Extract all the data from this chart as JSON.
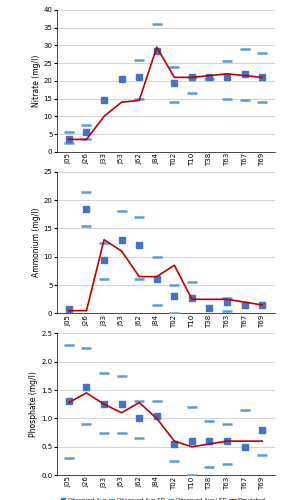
{
  "x_labels": [
    "J05",
    "J26",
    "J33",
    "J53",
    "J62",
    "J84",
    "T02",
    "T10",
    "T38",
    "T63",
    "T67",
    "T69"
  ],
  "x_positions": [
    0,
    1,
    2,
    3,
    4,
    5,
    6,
    7,
    8,
    9,
    10,
    11
  ],
  "nitrate": {
    "ylabel": "Nitrate (mg/l)",
    "ylim": [
      0.0,
      40.0
    ],
    "yticks": [
      0.0,
      5.0,
      10.0,
      15.0,
      20.0,
      25.0,
      30.0,
      35.0,
      40.0
    ],
    "obs_avg": [
      3.5,
      5.5,
      14.5,
      20.5,
      21.0,
      28.5,
      19.5,
      21.0,
      21.0,
      21.0,
      22.0,
      21.0
    ],
    "obs_minus_sd": [
      2.5,
      3.5,
      null,
      null,
      15.0,
      null,
      14.0,
      16.5,
      20.5,
      15.0,
      14.5,
      14.0
    ],
    "obs_plus_sd": [
      5.5,
      7.5,
      null,
      null,
      26.0,
      36.0,
      24.0,
      21.0,
      null,
      25.5,
      29.0,
      28.0
    ],
    "simulated": [
      3.5,
      3.5,
      10.0,
      14.0,
      14.5,
      29.5,
      21.0,
      21.0,
      21.5,
      22.0,
      21.5,
      21.0
    ]
  },
  "ammonium": {
    "ylabel": "Ammonium (mg/l)",
    "ylim": [
      0.0,
      25.0
    ],
    "yticks": [
      0.0,
      5.0,
      10.0,
      15.0,
      20.0,
      25.0
    ],
    "obs_avg": [
      0.8,
      18.5,
      9.5,
      13.0,
      12.0,
      6.0,
      3.0,
      2.8,
      1.0,
      2.0,
      1.5,
      1.5
    ],
    "obs_minus_sd": [
      null,
      15.5,
      6.0,
      null,
      6.0,
      1.5,
      0.0,
      null,
      null,
      0.5,
      null,
      null
    ],
    "obs_plus_sd": [
      null,
      21.5,
      12.5,
      18.0,
      17.0,
      10.0,
      5.0,
      5.5,
      null,
      2.8,
      null,
      null
    ],
    "simulated": [
      0.5,
      0.5,
      13.0,
      11.0,
      6.5,
      6.5,
      8.5,
      2.5,
      2.5,
      2.5,
      2.0,
      1.5
    ]
  },
  "phosphate": {
    "ylabel": "Phosphate (mg/l)",
    "ylim": [
      0.0,
      2.5
    ],
    "yticks": [
      0.0,
      0.5,
      1.0,
      1.5,
      2.0,
      2.5
    ],
    "obs_avg": [
      1.3,
      1.55,
      1.25,
      1.25,
      1.0,
      1.05,
      0.55,
      0.6,
      0.6,
      0.6,
      0.5,
      0.8
    ],
    "obs_minus_sd": [
      0.3,
      0.9,
      0.75,
      0.75,
      0.65,
      null,
      0.25,
      0.0,
      0.15,
      0.2,
      null,
      0.35
    ],
    "obs_plus_sd": [
      2.3,
      2.25,
      1.8,
      1.75,
      1.3,
      1.3,
      null,
      1.2,
      0.95,
      0.9,
      1.15,
      null
    ],
    "simulated": [
      1.28,
      1.45,
      1.25,
      1.1,
      1.28,
      1.0,
      0.6,
      0.5,
      0.55,
      0.6,
      0.6,
      0.6
    ]
  },
  "obs_avg_color": "#4472c4",
  "obs_sd_color": "#5b9bd5",
  "sim_color": "#c00000",
  "background_color": "#ffffff",
  "grid_color": "#d3d3d3"
}
